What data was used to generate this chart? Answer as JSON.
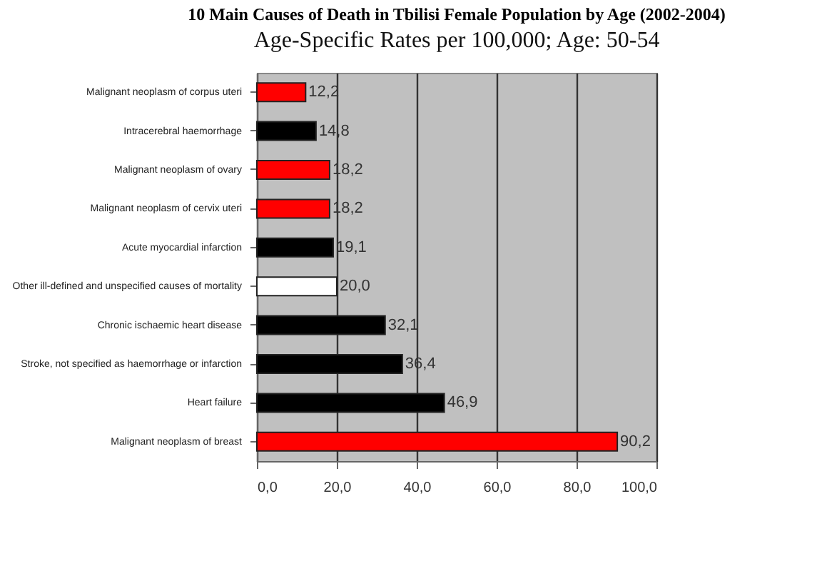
{
  "chart_data": {
    "type": "bar",
    "orientation": "horizontal",
    "title": "10 Main Causes of Death in Tbilisi Female Population by Age (2002-2004)",
    "subtitle": "Age-Specific  Rates per 100,000;  Age:  50-54",
    "categories": [
      "Malignant neoplasm of corpus uteri",
      "Intracerebral haemorrhage",
      "Malignant neoplasm of ovary",
      "Malignant neoplasm of cervix uteri",
      "Acute myocardial infarction",
      "Other ill-defined and unspecified causes of mortality",
      "Chronic ischaemic heart disease",
      "Stroke, not specified as haemorrhage or infarction",
      "Heart failure",
      "Malignant neoplasm of breast"
    ],
    "values": [
      12.2,
      14.8,
      18.2,
      18.2,
      19.1,
      20.0,
      32.1,
      36.4,
      46.9,
      90.2
    ],
    "value_labels": [
      "12,2",
      "14,8",
      "18,2",
      "18,2",
      "19,1",
      "20,0",
      "32,1",
      "36,4",
      "46,9",
      "90,2"
    ],
    "colors": [
      "#ff0000",
      "#000000",
      "#ff0000",
      "#ff0000",
      "#000000",
      "#ffffff",
      "#000000",
      "#000000",
      "#000000",
      "#ff0000"
    ],
    "xlim": [
      0,
      100
    ],
    "xticks": [
      {
        "value": 0,
        "label": "0,0"
      },
      {
        "value": 20,
        "label": "20,0"
      },
      {
        "value": 40,
        "label": "40,0"
      },
      {
        "value": 60,
        "label": "60,0"
      },
      {
        "value": 80,
        "label": "80,0"
      },
      {
        "value": 100,
        "label": "100,0"
      }
    ],
    "grid": "x"
  }
}
